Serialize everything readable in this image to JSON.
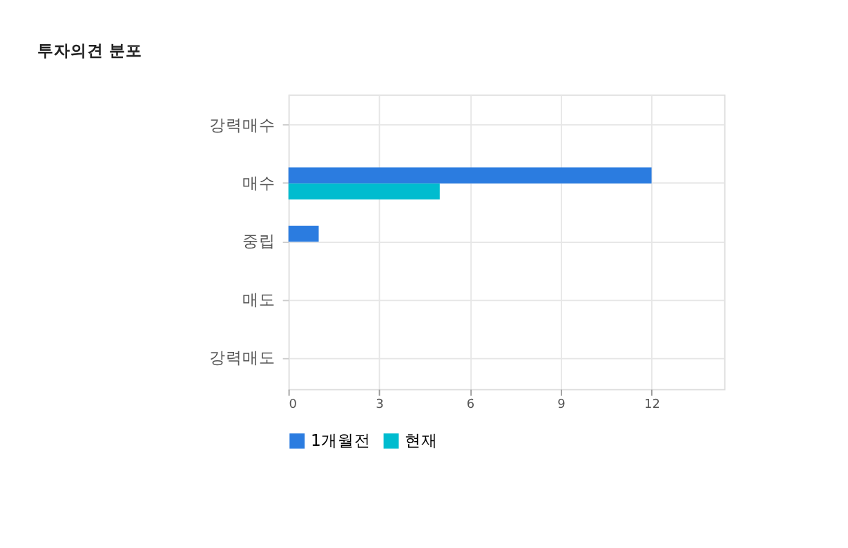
{
  "chart_data": {
    "type": "bar",
    "orientation": "horizontal",
    "title": "투자의견 분포",
    "categories": [
      "강력매수",
      "매수",
      "중립",
      "매도",
      "강력매도"
    ],
    "series": [
      {
        "name": "1개월전",
        "color": "#2b7ce0",
        "values": [
          0,
          12,
          1,
          0,
          0
        ]
      },
      {
        "name": "현재",
        "color": "#00bccf",
        "values": [
          0,
          5,
          0,
          0,
          0
        ]
      }
    ],
    "xlim": [
      0,
      14.4
    ],
    "xticks": [
      0,
      3,
      6,
      9,
      12
    ],
    "grid": true,
    "legend": "bottom"
  }
}
